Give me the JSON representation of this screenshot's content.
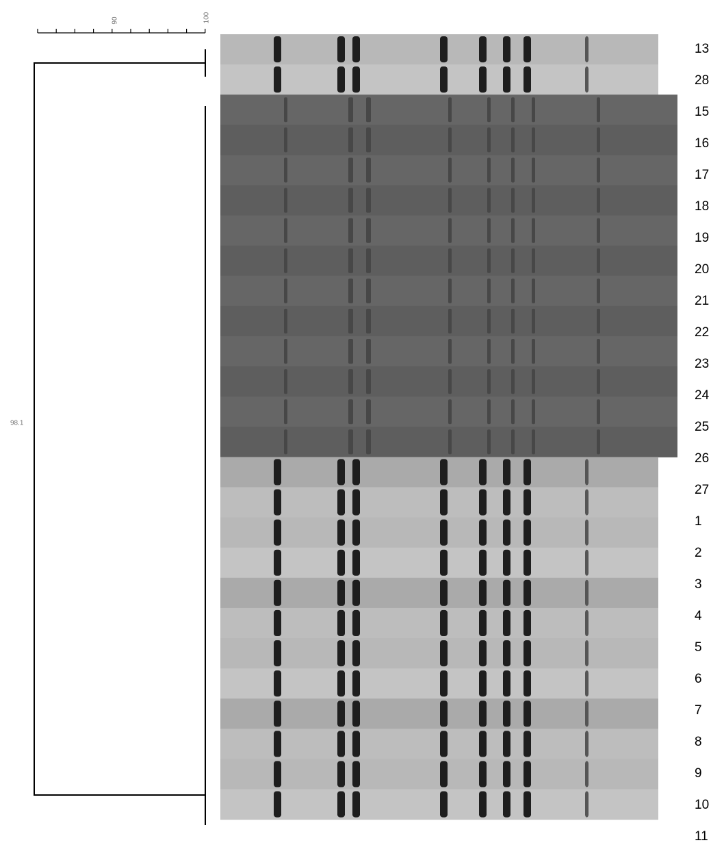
{
  "scale": {
    "labels": [
      "90",
      "100"
    ]
  },
  "node_label": "98.1",
  "lanes": [
    "13",
    "28",
    "15",
    "16",
    "17",
    "18",
    "19",
    "20",
    "21",
    "22",
    "23",
    "24",
    "25",
    "26",
    "27",
    "1",
    "2",
    "3",
    "4",
    "5",
    "6",
    "7",
    "8",
    "9",
    "10",
    "11"
  ]
}
